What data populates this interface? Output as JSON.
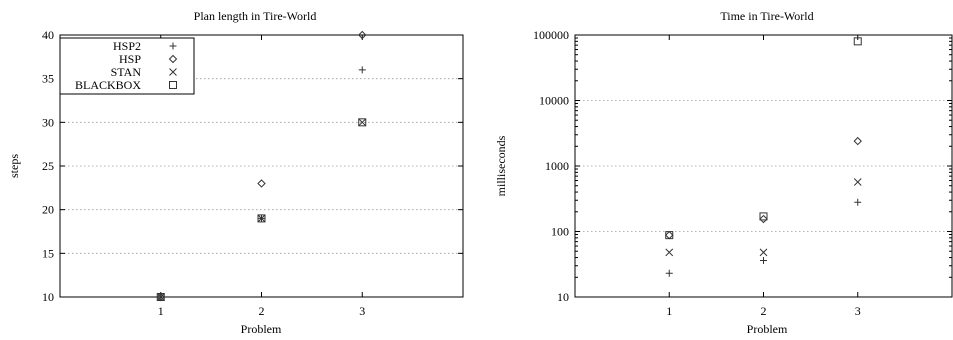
{
  "chart_data": [
    {
      "type": "scatter",
      "title": "Plan length in Tire-World",
      "xlabel": "Problem",
      "ylabel": "steps",
      "x": [
        1,
        2,
        3
      ],
      "xlim": [
        0,
        4
      ],
      "ylim": [
        10,
        40
      ],
      "yscale": "linear",
      "xticks": [
        "1",
        "2",
        "3"
      ],
      "yticks": [
        "10",
        "15",
        "20",
        "25",
        "30",
        "35",
        "40"
      ],
      "ytick_values": [
        10,
        15,
        20,
        25,
        30,
        35,
        40
      ],
      "grid": true,
      "legend": "top-left",
      "series": [
        {
          "name": "HSP2",
          "marker": "plus",
          "values": [
            10,
            19,
            36
          ]
        },
        {
          "name": "HSP",
          "marker": "diamond",
          "values": [
            10,
            23,
            40
          ]
        },
        {
          "name": "STAN",
          "marker": "cross",
          "values": [
            10,
            19,
            30
          ]
        },
        {
          "name": "BLACKBOX",
          "marker": "square",
          "values": [
            10,
            19,
            30
          ]
        }
      ]
    },
    {
      "type": "scatter",
      "title": "Time in Tire-World",
      "xlabel": "Problem",
      "ylabel": "milliseconds",
      "x": [
        1,
        2,
        3
      ],
      "xlim": [
        0,
        4
      ],
      "ylim": [
        10,
        100000
      ],
      "yscale": "log",
      "xticks": [
        "1",
        "2",
        "3"
      ],
      "yticks": [
        "10",
        "100",
        "1000",
        "10000",
        "100000"
      ],
      "ytick_values": [
        10,
        100,
        1000,
        10000,
        100000
      ],
      "grid": true,
      "legend": "none",
      "series": [
        {
          "name": "HSP2",
          "marker": "plus",
          "values": [
            23,
            36,
            280
          ]
        },
        {
          "name": "HSP",
          "marker": "diamond",
          "values": [
            88,
            155,
            2400
          ]
        },
        {
          "name": "STAN",
          "marker": "cross",
          "values": [
            48,
            48,
            570
          ]
        },
        {
          "name": "BLACKBOX",
          "marker": "square",
          "values": [
            88,
            170,
            80000
          ]
        }
      ]
    }
  ]
}
